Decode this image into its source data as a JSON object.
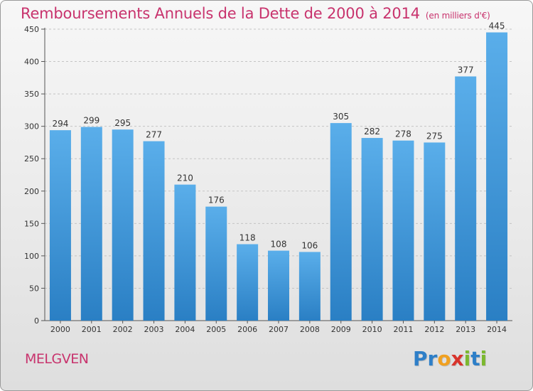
{
  "chart_data": {
    "type": "bar",
    "title": "Remboursements Annuels de la Dette de 2000 à 2014",
    "unit_note": "(en milliers d'€)",
    "categories": [
      "2000",
      "2001",
      "2002",
      "2003",
      "2004",
      "2005",
      "2006",
      "2007",
      "2008",
      "2009",
      "2010",
      "2011",
      "2012",
      "2013",
      "2014"
    ],
    "values": [
      294,
      299,
      295,
      277,
      210,
      176,
      118,
      108,
      106,
      305,
      282,
      278,
      275,
      377,
      445
    ],
    "ylim": [
      0,
      450
    ],
    "yticks": [
      0,
      50,
      100,
      150,
      200,
      250,
      300,
      350,
      400,
      450
    ],
    "grid": true,
    "bar_color": "#3f95d8"
  },
  "footer": {
    "commune": "MELGVEN",
    "logo_letters": [
      {
        "char": "P",
        "color": "#2e7fc8"
      },
      {
        "char": "r",
        "color": "#2e7fc8"
      },
      {
        "char": "o",
        "color": "#f0a020"
      },
      {
        "char": "x",
        "color": "#d8342c"
      },
      {
        "char": "i",
        "color": "#7cb82f"
      },
      {
        "char": "t",
        "color": "#2e7fc8"
      },
      {
        "char": "i",
        "color": "#7cb82f"
      }
    ]
  }
}
